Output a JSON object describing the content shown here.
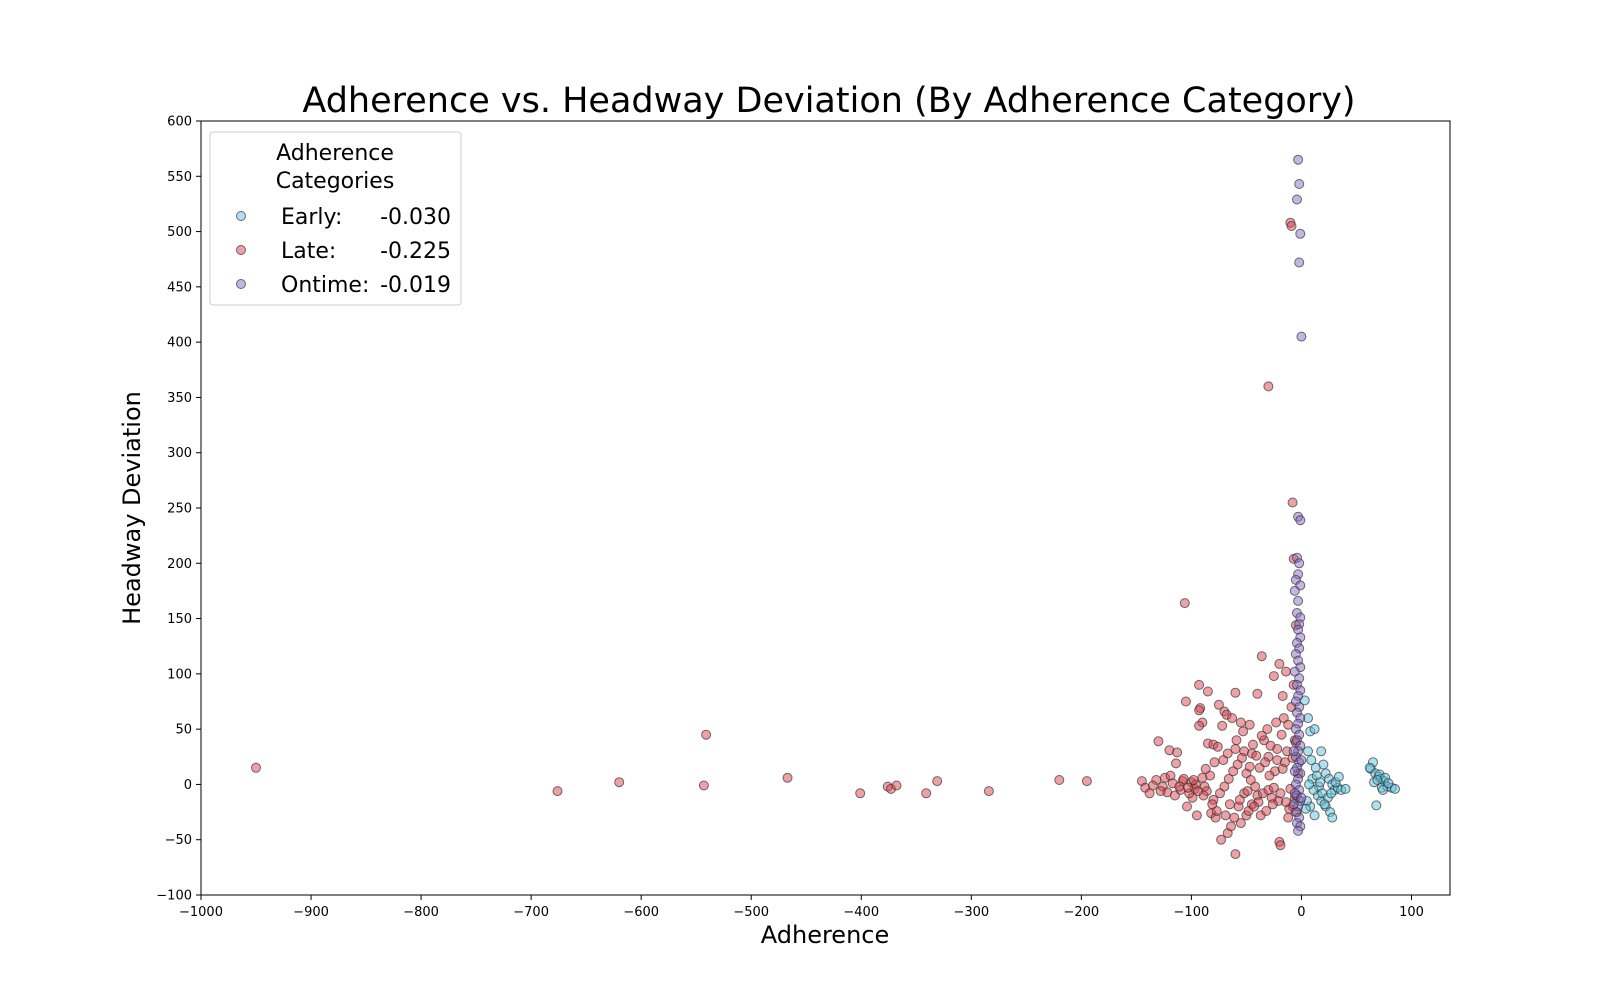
{
  "chart_data": {
    "type": "scatter",
    "title": "Adherence vs. Headway Deviation (By Adherence Category)",
    "xlabel": "Adherence",
    "ylabel": "Headway Deviation",
    "xlim": [
      -1000,
      135
    ],
    "ylim": [
      -100,
      600
    ],
    "xticks": [
      -1000,
      -900,
      -800,
      -700,
      -600,
      -500,
      -400,
      -300,
      -200,
      -100,
      0,
      100
    ],
    "xtick_labels": [
      "−1000",
      "−900",
      "−800",
      "−700",
      "−600",
      "−500",
      "−400",
      "−300",
      "−200",
      "−100",
      "0",
      "100"
    ],
    "yticks": [
      -100,
      -50,
      0,
      50,
      100,
      150,
      200,
      250,
      300,
      350,
      400,
      450,
      500,
      550,
      600
    ],
    "ytick_labels": [
      "−100",
      "−50",
      "0",
      "50",
      "100",
      "150",
      "200",
      "250",
      "300",
      "350",
      "400",
      "450",
      "500",
      "550",
      "600"
    ],
    "grid": false,
    "legend": {
      "title_line1": "Adherence",
      "title_line2": "Categories",
      "placement": "top-left"
    },
    "series": [
      {
        "name": "Early:",
        "value_text": "-0.030",
        "color": "#5ec4e0",
        "points": [
          [
            65,
            20
          ],
          [
            63,
            14
          ],
          [
            67,
            10
          ],
          [
            70,
            7
          ],
          [
            72,
            5
          ],
          [
            75,
            3
          ],
          [
            73,
            -3
          ],
          [
            78,
            -2
          ],
          [
            82,
            -3
          ],
          [
            85,
            -4
          ],
          [
            68,
            -19
          ],
          [
            66,
            2
          ],
          [
            71,
            9
          ],
          [
            76,
            6
          ],
          [
            79,
            1
          ],
          [
            74,
            -5
          ],
          [
            62,
            15
          ],
          [
            69,
            4
          ],
          [
            8,
            48
          ],
          [
            12,
            50
          ],
          [
            18,
            30
          ],
          [
            20,
            18
          ],
          [
            22,
            10
          ],
          [
            25,
            5
          ],
          [
            28,
            0
          ],
          [
            30,
            -5
          ],
          [
            33,
            -3
          ],
          [
            36,
            -5
          ],
          [
            40,
            -4
          ],
          [
            15,
            -10
          ],
          [
            18,
            -15
          ],
          [
            22,
            -20
          ],
          [
            26,
            -25
          ],
          [
            28,
            -30
          ],
          [
            12,
            -28
          ],
          [
            8,
            -20
          ],
          [
            5,
            -15
          ],
          [
            10,
            5
          ],
          [
            14,
            8
          ],
          [
            16,
            -2
          ],
          [
            19,
            -8
          ],
          [
            24,
            -12
          ],
          [
            6,
            30
          ],
          [
            9,
            22
          ],
          [
            11,
            -5
          ],
          [
            13,
            15
          ],
          [
            17,
            2
          ],
          [
            21,
            -18
          ],
          [
            27,
            -8
          ],
          [
            31,
            2
          ],
          [
            34,
            7
          ],
          [
            7,
            0
          ],
          [
            4,
            -22
          ],
          [
            3,
            76
          ],
          [
            6,
            60
          ]
        ]
      },
      {
        "name": "Late:",
        "value_text": "-0.225",
        "color": "#e0424c",
        "points": [
          [
            -950,
            15
          ],
          [
            -676,
            -6
          ],
          [
            -620,
            2
          ],
          [
            -543,
            -1
          ],
          [
            -541,
            45
          ],
          [
            -467,
            6
          ],
          [
            -401,
            -8
          ],
          [
            -376,
            -2
          ],
          [
            -373,
            -4
          ],
          [
            -368,
            -1
          ],
          [
            -341,
            -8
          ],
          [
            -331,
            3
          ],
          [
            -284,
            -6
          ],
          [
            -220,
            4
          ],
          [
            -195,
            3
          ],
          [
            -106,
            164
          ],
          [
            -30,
            360
          ],
          [
            -10,
            508
          ],
          [
            -9,
            505
          ],
          [
            -8,
            255
          ],
          [
            -7,
            204
          ],
          [
            -5,
            144
          ],
          [
            -36,
            116
          ],
          [
            -20,
            109
          ],
          [
            -14,
            102
          ],
          [
            -25,
            98
          ],
          [
            -93,
            90
          ],
          [
            -85,
            84
          ],
          [
            -60,
            83
          ],
          [
            -40,
            82
          ],
          [
            -17,
            80
          ],
          [
            -105,
            75
          ],
          [
            -92,
            69
          ],
          [
            -93,
            67
          ],
          [
            -75,
            72
          ],
          [
            -70,
            66
          ],
          [
            -68,
            63
          ],
          [
            -63,
            60
          ],
          [
            -55,
            56
          ],
          [
            -47,
            54
          ],
          [
            -72,
            53
          ],
          [
            -90,
            56
          ],
          [
            -93,
            53
          ],
          [
            -130,
            39
          ],
          [
            -120,
            31
          ],
          [
            -113,
            29
          ],
          [
            -114,
            19
          ],
          [
            -85,
            37
          ],
          [
            -80,
            36
          ],
          [
            -76,
            34
          ],
          [
            -60,
            32
          ],
          [
            -52,
            30
          ],
          [
            -45,
            28
          ],
          [
            -30,
            25
          ],
          [
            -22,
            22
          ],
          [
            -15,
            20
          ],
          [
            -145,
            3
          ],
          [
            -142,
            -3
          ],
          [
            -138,
            -8
          ],
          [
            -132,
            4
          ],
          [
            -126,
            -2
          ],
          [
            -122,
            -7
          ],
          [
            -117,
            1
          ],
          [
            -110,
            -5
          ],
          [
            -104,
            -20
          ],
          [
            -99,
            -12
          ],
          [
            -95,
            -28
          ],
          [
            -88,
            -2
          ],
          [
            -82,
            -26
          ],
          [
            -78,
            -30
          ],
          [
            -73,
            -50
          ],
          [
            -67,
            -44
          ],
          [
            -64,
            -38
          ],
          [
            -60,
            -63
          ],
          [
            -55,
            -35
          ],
          [
            -50,
            -28
          ],
          [
            -45,
            -18
          ],
          [
            -40,
            -10
          ],
          [
            -35,
            -8
          ],
          [
            -30,
            -5
          ],
          [
            -25,
            -3
          ],
          [
            -20,
            -52
          ],
          [
            -19,
            -55
          ],
          [
            -12,
            -30
          ],
          [
            -8,
            -20
          ],
          [
            -5,
            -10
          ],
          [
            -100,
            2
          ],
          [
            -97,
            -4
          ],
          [
            -90,
            6
          ],
          [
            -86,
            -6
          ],
          [
            -80,
            -14
          ],
          [
            -74,
            -8
          ],
          [
            -70,
            -2
          ],
          [
            -66,
            5
          ],
          [
            -62,
            12
          ],
          [
            -58,
            18
          ],
          [
            -54,
            24
          ],
          [
            -50,
            10
          ],
          [
            -46,
            4
          ],
          [
            -42,
            -2
          ],
          [
            -38,
            15
          ],
          [
            -34,
            40
          ],
          [
            -31,
            50
          ],
          [
            -28,
            35
          ],
          [
            -24,
            12
          ],
          [
            -21,
            -15
          ],
          [
            -18,
            45
          ],
          [
            -16,
            60
          ],
          [
            -13,
            30
          ],
          [
            -11,
            -22
          ],
          [
            -9,
            70
          ],
          [
            -7,
            90
          ],
          [
            -6,
            40
          ],
          [
            -4,
            -25
          ],
          [
            -3,
            10
          ],
          [
            -57,
            -20
          ],
          [
            -48,
            -24
          ],
          [
            -44,
            36
          ],
          [
            -39,
            -16
          ],
          [
            -33,
            20
          ],
          [
            -27,
            -12
          ],
          [
            -23,
            56
          ],
          [
            -52,
            -8
          ],
          [
            -65,
            -18
          ],
          [
            -71,
            22
          ],
          [
            -77,
            -24
          ],
          [
            -83,
            8
          ],
          [
            -89,
            -10
          ],
          [
            -96,
            0
          ],
          [
            -102,
            -8
          ],
          [
            -108,
            3
          ],
          [
            -115,
            -10
          ],
          [
            -124,
            6
          ],
          [
            -135,
            -1
          ],
          [
            -128,
            -6
          ],
          [
            -119,
            8
          ],
          [
            -111,
            -2
          ],
          [
            -107,
            5
          ],
          [
            -103,
            -3
          ],
          [
            -98,
            4
          ],
          [
            -94,
            -6
          ],
          [
            -87,
            14
          ],
          [
            -81,
            -18
          ],
          [
            -79,
            20
          ],
          [
            -69,
            -28
          ],
          [
            -67,
            28
          ],
          [
            -61,
            -30
          ],
          [
            -59,
            40
          ],
          [
            -56,
            -14
          ],
          [
            -53,
            48
          ],
          [
            -49,
            -6
          ],
          [
            -47,
            16
          ],
          [
            -43,
            -20
          ],
          [
            -41,
            26
          ],
          [
            -37,
            -28
          ],
          [
            -36,
            44
          ],
          [
            -32,
            -24
          ],
          [
            -29,
            8
          ],
          [
            -26,
            -18
          ],
          [
            -22,
            32
          ],
          [
            -19,
            -8
          ],
          [
            -17,
            14
          ],
          [
            -14,
            -16
          ],
          [
            -12,
            54
          ],
          [
            -10,
            -4
          ],
          [
            -8,
            24
          ],
          [
            -6,
            -12
          ],
          [
            -5,
            38
          ]
        ]
      },
      {
        "name": "Ontime:",
        "value_text": "-0.019",
        "color": "#8a6cc7",
        "points": [
          [
            -3,
            565
          ],
          [
            -2,
            543
          ],
          [
            -4,
            529
          ],
          [
            -1,
            498
          ],
          [
            -2,
            472
          ],
          [
            0,
            405
          ],
          [
            -3,
            242
          ],
          [
            -1,
            239
          ],
          [
            -4,
            205
          ],
          [
            -2,
            200
          ],
          [
            -3,
            190
          ],
          [
            -5,
            185
          ],
          [
            -1,
            180
          ],
          [
            -6,
            175
          ],
          [
            -3,
            166
          ],
          [
            -4,
            155
          ],
          [
            -1,
            151
          ],
          [
            -2,
            145
          ],
          [
            -3,
            140
          ],
          [
            -1,
            133
          ],
          [
            -4,
            128
          ],
          [
            -2,
            123
          ],
          [
            -5,
            118
          ],
          [
            -3,
            112
          ],
          [
            -1,
            106
          ],
          [
            -6,
            102
          ],
          [
            -2,
            96
          ],
          [
            -4,
            90
          ],
          [
            -1,
            85
          ],
          [
            -3,
            80
          ],
          [
            -5,
            75
          ],
          [
            -2,
            70
          ],
          [
            -4,
            65
          ],
          [
            -1,
            60
          ],
          [
            -3,
            55
          ],
          [
            -5,
            50
          ],
          [
            -2,
            45
          ],
          [
            -4,
            40
          ],
          [
            -1,
            35
          ],
          [
            -3,
            30
          ],
          [
            -5,
            25
          ],
          [
            -2,
            20
          ],
          [
            -4,
            15
          ],
          [
            -1,
            10
          ],
          [
            -3,
            5
          ],
          [
            -5,
            0
          ],
          [
            -2,
            -5
          ],
          [
            -4,
            -10
          ],
          [
            -1,
            -15
          ],
          [
            -3,
            -20
          ],
          [
            -5,
            -25
          ],
          [
            -2,
            -30
          ],
          [
            -4,
            -35
          ],
          [
            -1,
            -38
          ],
          [
            -3,
            -42
          ],
          [
            -6,
            12
          ],
          [
            -6,
            -8
          ],
          [
            0,
            22
          ],
          [
            0,
            -12
          ],
          [
            -7,
            30
          ],
          [
            -7,
            -18
          ]
        ]
      }
    ]
  }
}
